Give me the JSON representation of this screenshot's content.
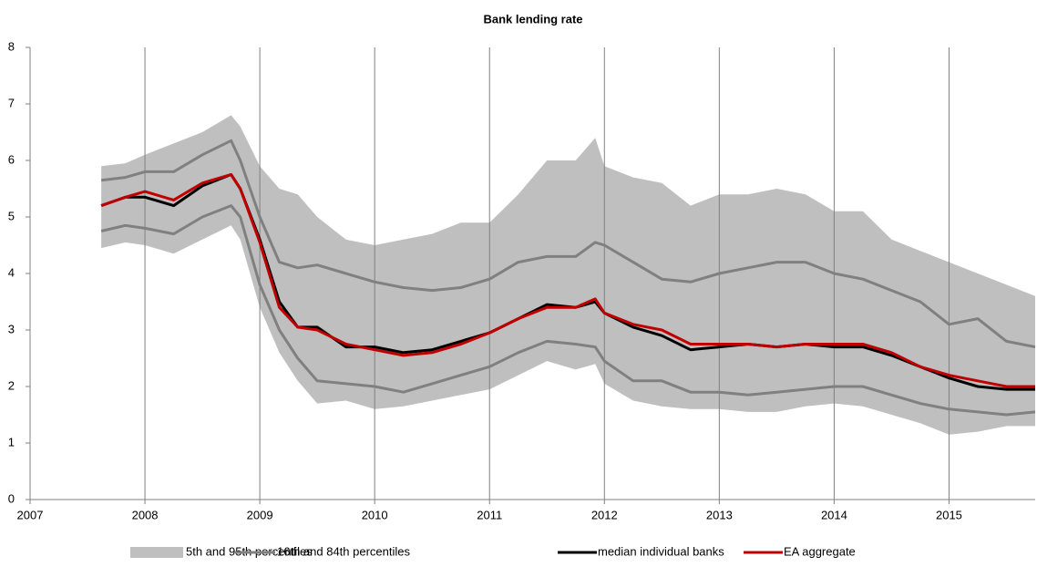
{
  "chart_data": {
    "type": "line",
    "title": "Bank lending rate",
    "x": [
      2007.62,
      2007.83,
      2008.0,
      2008.25,
      2008.5,
      2008.75,
      2008.83,
      2009.0,
      2009.17,
      2009.33,
      2009.5,
      2009.75,
      2010.0,
      2010.25,
      2010.5,
      2010.75,
      2011.0,
      2011.25,
      2011.5,
      2011.75,
      2011.92,
      2012.0,
      2012.25,
      2012.5,
      2012.75,
      2013.0,
      2013.25,
      2013.5,
      2013.75,
      2014.0,
      2014.25,
      2014.5,
      2014.75,
      2015.0,
      2015.25,
      2015.5,
      2015.75
    ],
    "band": {
      "name": "5th and 95th percentiles",
      "color": "#bfbfbf",
      "upper": [
        5.9,
        5.95,
        6.1,
        6.3,
        6.5,
        6.8,
        6.6,
        5.9,
        5.5,
        5.4,
        5.0,
        4.6,
        4.5,
        4.6,
        4.7,
        4.9,
        4.9,
        5.4,
        6.0,
        6.0,
        6.4,
        5.9,
        5.7,
        5.6,
        5.2,
        5.4,
        5.4,
        5.5,
        5.4,
        5.1,
        5.1,
        4.6,
        4.4,
        4.2,
        4.0,
        3.8,
        3.6
      ],
      "lower": [
        4.45,
        4.55,
        4.5,
        4.35,
        4.6,
        4.85,
        4.6,
        3.4,
        2.6,
        2.1,
        1.7,
        1.75,
        1.6,
        1.65,
        1.75,
        1.85,
        1.95,
        2.2,
        2.45,
        2.3,
        2.4,
        2.05,
        1.75,
        1.65,
        1.6,
        1.6,
        1.55,
        1.55,
        1.65,
        1.7,
        1.65,
        1.5,
        1.35,
        1.15,
        1.2,
        1.3,
        1.3
      ]
    },
    "percentile_band": {
      "name": "16th and 84th percentiles",
      "color": "#808080",
      "upper": [
        5.65,
        5.7,
        5.8,
        5.8,
        6.1,
        6.35,
        6.0,
        5.0,
        4.2,
        4.1,
        4.15,
        4.0,
        3.85,
        3.75,
        3.7,
        3.75,
        3.9,
        4.2,
        4.3,
        4.3,
        4.55,
        4.5,
        4.2,
        3.9,
        3.85,
        4.0,
        4.1,
        4.2,
        4.2,
        4.0,
        3.9,
        3.7,
        3.5,
        3.1,
        3.2,
        2.8,
        2.7
      ],
      "lower": [
        4.75,
        4.85,
        4.8,
        4.7,
        5.0,
        5.2,
        5.0,
        3.8,
        3.0,
        2.5,
        2.1,
        2.05,
        2.0,
        1.9,
        2.05,
        2.2,
        2.35,
        2.6,
        2.8,
        2.75,
        2.7,
        2.45,
        2.1,
        2.1,
        1.9,
        1.9,
        1.85,
        1.9,
        1.95,
        2.0,
        2.0,
        1.85,
        1.7,
        1.6,
        1.55,
        1.5,
        1.55
      ]
    },
    "series": [
      {
        "name": "median individual banks",
        "color": "#000000",
        "values": [
          5.2,
          5.35,
          5.35,
          5.2,
          5.55,
          5.75,
          5.5,
          4.6,
          3.5,
          3.05,
          3.05,
          2.7,
          2.7,
          2.6,
          2.65,
          2.8,
          2.95,
          3.2,
          3.45,
          3.4,
          3.5,
          3.3,
          3.05,
          2.9,
          2.65,
          2.7,
          2.75,
          2.7,
          2.75,
          2.7,
          2.7,
          2.55,
          2.35,
          2.15,
          2.0,
          1.95,
          1.95
        ]
      },
      {
        "name": "EA aggregate",
        "color": "#c00000",
        "values": [
          5.2,
          5.35,
          5.45,
          5.3,
          5.6,
          5.75,
          5.5,
          4.55,
          3.4,
          3.05,
          3.0,
          2.75,
          2.65,
          2.55,
          2.6,
          2.75,
          2.95,
          3.2,
          3.4,
          3.4,
          3.55,
          3.3,
          3.1,
          3.0,
          2.75,
          2.75,
          2.75,
          2.7,
          2.75,
          2.75,
          2.75,
          2.6,
          2.35,
          2.2,
          2.1,
          2.0,
          2.0
        ]
      }
    ],
    "xlim": [
      2007,
      2015.75
    ],
    "xticks": [
      2007,
      2008,
      2009,
      2010,
      2011,
      2012,
      2013,
      2014,
      2015
    ],
    "ylim": [
      0,
      8
    ],
    "yticks": [
      0,
      1,
      2,
      3,
      4,
      5,
      6,
      7,
      8
    ],
    "grid": true
  }
}
